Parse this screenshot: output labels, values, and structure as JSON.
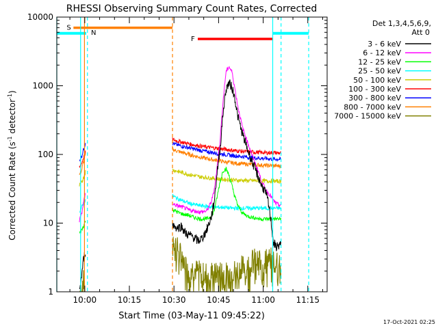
{
  "chart_data": {
    "type": "line",
    "title": "RHESSI Observing Summary Count Rates, Corrected",
    "xlabel": "Start Time (03-May-11 09:45:22)",
    "ylabel_main": "Corrected Count Rate (s",
    "ylabel_sup1": "-1",
    "ylabel_mid": " detector",
    "ylabel_sup2": "-1",
    "ylabel_end": ")",
    "yscale": "log",
    "ylim": [
      1,
      10000
    ],
    "xlim_minutes": [
      -9.4,
      81.5
    ],
    "yticks": [
      1,
      10,
      100,
      1000,
      10000
    ],
    "ytick_labels": [
      "1",
      "10",
      "100",
      "1000",
      "10000"
    ],
    "xticks": [
      {
        "label": "10:00",
        "min": 0
      },
      {
        "label": "10:15",
        "min": 15
      },
      {
        "label": "10:30",
        "min": 30
      },
      {
        "label": "10:45",
        "min": 45
      },
      {
        "label": "11:00",
        "min": 60
      },
      {
        "label": "11:15",
        "min": 75
      }
    ],
    "legend": {
      "header_line1": "Det 1,3,4,5,6,9,",
      "header_line2": "Att 0",
      "placement": "top-right-outside"
    },
    "series": [
      {
        "name": "3 - 6 keV",
        "color": "#000000",
        "segments": [
          [
            [
              -1.8,
              1.0
            ],
            [
              -1.0,
              1.8
            ],
            [
              -0.5,
              2.8
            ],
            [
              0,
              3.5
            ],
            [
              0.3,
              4.2
            ]
          ],
          [
            [
              29.5,
              9.5
            ],
            [
              31,
              8.5
            ],
            [
              32.5,
              9.0
            ],
            [
              34,
              7.0
            ],
            [
              36,
              6.5
            ],
            [
              38,
              5.5
            ],
            [
              39.5,
              6.0
            ],
            [
              41,
              8.0
            ],
            [
              42.5,
              12
            ],
            [
              43.5,
              20
            ],
            [
              44.5,
              55
            ],
            [
              45.5,
              120
            ],
            [
              46.5,
              400
            ],
            [
              47.5,
              900
            ],
            [
              48.5,
              1100
            ],
            [
              49.5,
              950
            ],
            [
              50.5,
              650
            ],
            [
              51.5,
              350
            ],
            [
              53,
              200
            ],
            [
              55,
              110
            ],
            [
              57,
              65
            ],
            [
              58.5,
              45
            ],
            [
              59.5,
              35
            ],
            [
              60.5,
              30
            ],
            [
              61.5,
              22
            ],
            [
              62.5,
              12
            ],
            [
              63.5,
              5.0
            ],
            [
              64.5,
              4.5
            ],
            [
              66,
              5.0
            ]
          ]
        ]
      },
      {
        "name": "6 - 12 keV",
        "color": "#ff00ff",
        "segments": [
          [
            [
              -1.8,
              11
            ],
            [
              -1.0,
              14
            ],
            [
              -0.5,
              19
            ],
            [
              0,
              24
            ],
            [
              0.3,
              28
            ]
          ],
          [
            [
              29.5,
              19
            ],
            [
              31,
              18
            ],
            [
              33,
              17
            ],
            [
              35,
              15.5
            ],
            [
              37,
              15
            ],
            [
              39,
              14.5
            ],
            [
              41,
              15
            ],
            [
              42.5,
              20
            ],
            [
              43.5,
              30
            ],
            [
              44.5,
              65
            ],
            [
              45.5,
              160
            ],
            [
              46.5,
              600
            ],
            [
              47.5,
              1600
            ],
            [
              48.5,
              1900
            ],
            [
              49.5,
              1600
            ],
            [
              50.5,
              900
            ],
            [
              51.5,
              500
            ],
            [
              53,
              250
            ],
            [
              55,
              140
            ],
            [
              57,
              80
            ],
            [
              58.5,
              55
            ],
            [
              59.5,
              40
            ],
            [
              60.5,
              33
            ],
            [
              61.5,
              28
            ],
            [
              62.5,
              25
            ],
            [
              63.5,
              21
            ],
            [
              64.5,
              19
            ],
            [
              66,
              18
            ]
          ]
        ]
      },
      {
        "name": "12 - 25 keV",
        "color": "#00ff00",
        "segments": [
          [
            [
              -1.8,
              7
            ],
            [
              -1.0,
              8
            ],
            [
              -0.5,
              9
            ],
            [
              0,
              10
            ],
            [
              0.3,
              11
            ]
          ],
          [
            [
              29.5,
              16
            ],
            [
              31,
              14.5
            ],
            [
              33,
              13.5
            ],
            [
              35,
              13
            ],
            [
              37,
              12
            ],
            [
              39,
              11.5
            ],
            [
              41,
              11.5
            ],
            [
              42.5,
              12.5
            ],
            [
              43.5,
              15
            ],
            [
              44.5,
              24
            ],
            [
              45.5,
              40
            ],
            [
              46.5,
              58
            ],
            [
              47.5,
              62
            ],
            [
              48.5,
              50
            ],
            [
              49.5,
              35
            ],
            [
              50.5,
              24
            ],
            [
              51.5,
              18
            ],
            [
              53,
              14
            ],
            [
              55,
              12.5
            ],
            [
              57,
              12
            ],
            [
              59,
              11.5
            ],
            [
              61,
              11.5
            ],
            [
              63,
              11.5
            ],
            [
              66,
              11.5
            ]
          ]
        ]
      },
      {
        "name": "25 - 50 keV",
        "color": "#00ffff",
        "segments": [
          [
            [
              -1.8,
              15
            ],
            [
              -1.0,
              17
            ],
            [
              -0.5,
              19
            ],
            [
              0,
              21
            ],
            [
              0.3,
              23
            ]
          ],
          [
            [
              29.5,
              25
            ],
            [
              31,
              23
            ],
            [
              33,
              21
            ],
            [
              35,
              19.5
            ],
            [
              37,
              18.5
            ],
            [
              39,
              18
            ],
            [
              41,
              17.5
            ],
            [
              43,
              17
            ],
            [
              45,
              17
            ],
            [
              47,
              17
            ],
            [
              49,
              16.5
            ],
            [
              51,
              16.5
            ],
            [
              53,
              16.5
            ],
            [
              55,
              16.5
            ],
            [
              57,
              16.5
            ],
            [
              59,
              16.5
            ],
            [
              61,
              16.5
            ],
            [
              63,
              16.5
            ],
            [
              66,
              16.5
            ]
          ]
        ]
      },
      {
        "name": "50 - 100 keV",
        "color": "#cccc00",
        "segments": [
          [
            [
              -1.8,
              35
            ],
            [
              -1.0,
              40
            ],
            [
              -0.5,
              45
            ],
            [
              0,
              52
            ],
            [
              0.3,
              58
            ]
          ],
          [
            [
              29.5,
              60
            ],
            [
              31,
              57
            ],
            [
              33,
              54
            ],
            [
              35,
              51
            ],
            [
              37,
              49
            ],
            [
              39,
              47
            ],
            [
              41,
              46
            ],
            [
              43,
              45
            ],
            [
              45,
              44
            ],
            [
              47,
              43
            ],
            [
              49,
              43
            ],
            [
              51,
              42
            ],
            [
              53,
              42
            ],
            [
              55,
              41.5
            ],
            [
              57,
              41.5
            ],
            [
              59,
              41
            ],
            [
              61,
              41
            ],
            [
              63,
              41
            ],
            [
              66,
              40.5
            ]
          ]
        ]
      },
      {
        "name": "100 - 300 keV",
        "color": "#ff0000",
        "segments": [
          [
            [
              -1.8,
              65
            ],
            [
              -1.0,
              75
            ],
            [
              -0.5,
              88
            ],
            [
              0,
              100
            ],
            [
              0.3,
              112
            ]
          ],
          [
            [
              29.5,
              165
            ],
            [
              31,
              158
            ],
            [
              33,
              150
            ],
            [
              35,
              143
            ],
            [
              37,
              137
            ],
            [
              39,
              132
            ],
            [
              41,
              128
            ],
            [
              43,
              125
            ],
            [
              45,
              122
            ],
            [
              47,
              119
            ],
            [
              49,
              116
            ],
            [
              51,
              113
            ],
            [
              53,
              111
            ],
            [
              55,
              109
            ],
            [
              57,
              108
            ],
            [
              59,
              107
            ],
            [
              61,
              106
            ],
            [
              63,
              106
            ],
            [
              66,
              105
            ]
          ]
        ]
      },
      {
        "name": "300 - 800 keV",
        "color": "#0000ff",
        "segments": [
          [
            [
              -1.8,
              80
            ],
            [
              -1.0,
              95
            ],
            [
              -0.5,
              115
            ],
            [
              0,
              135
            ],
            [
              0.3,
              155
            ]
          ],
          [
            [
              29.5,
              145
            ],
            [
              31,
              138
            ],
            [
              33,
              131
            ],
            [
              35,
              125
            ],
            [
              37,
              119
            ],
            [
              39,
              114
            ],
            [
              41,
              110
            ],
            [
              43,
              106
            ],
            [
              45,
              103
            ],
            [
              47,
              100
            ],
            [
              49,
              97
            ],
            [
              51,
              95
            ],
            [
              53,
              93
            ],
            [
              55,
              91
            ],
            [
              57,
              89
            ],
            [
              59,
              88
            ],
            [
              61,
              87
            ],
            [
              63,
              86
            ],
            [
              66,
              85
            ]
          ]
        ]
      },
      {
        "name": "800 - 7000 keV",
        "color": "#ff8000",
        "segments": [
          [
            [
              -1.8,
              50
            ],
            [
              -1.0,
              60
            ],
            [
              -0.5,
              75
            ],
            [
              0,
              90
            ],
            [
              0.3,
              105
            ]
          ],
          [
            [
              29.5,
              118
            ],
            [
              31,
              112
            ],
            [
              33,
              106
            ],
            [
              35,
              100
            ],
            [
              37,
              95
            ],
            [
              39,
              91
            ],
            [
              41,
              87
            ],
            [
              43,
              84
            ],
            [
              45,
              81
            ],
            [
              47,
              78
            ],
            [
              49,
              76
            ],
            [
              51,
              74
            ],
            [
              53,
              73
            ],
            [
              55,
              72
            ],
            [
              57,
              71
            ],
            [
              59,
              70
            ],
            [
              61,
              69
            ],
            [
              63,
              68.5
            ],
            [
              66,
              68
            ]
          ]
        ]
      },
      {
        "name": "7000 - 15000 keV",
        "color": "#808000",
        "segments": [
          [
            [
              -1.8,
              1.0
            ],
            [
              -1.0,
              1.3
            ],
            [
              0,
              1.6
            ]
          ],
          [
            [
              29.5,
              6.5
            ],
            [
              30.5,
              5.0
            ],
            [
              31.5,
              4.0
            ],
            [
              33,
              3.2
            ],
            [
              34.5,
              2.5
            ],
            [
              36,
              2.2
            ],
            [
              38,
              2.0
            ],
            [
              40,
              1.8
            ],
            [
              42,
              2.0
            ],
            [
              44,
              1.8
            ],
            [
              46,
              2.0
            ],
            [
              48,
              1.8
            ],
            [
              50,
              2.0
            ],
            [
              52,
              2.2
            ],
            [
              54,
              2.5
            ],
            [
              56,
              2.8
            ],
            [
              58,
              3.0
            ],
            [
              60,
              3.0
            ],
            [
              62,
              3.0
            ],
            [
              64,
              3.0
            ],
            [
              66,
              3.0
            ]
          ]
        ]
      }
    ],
    "flags": [
      {
        "label": "S",
        "color": "#ff8000",
        "start": -3.8,
        "end": 29.5,
        "y": 7000
      },
      {
        "label": "F",
        "color": "#ff0000",
        "start": 38.0,
        "end": 63.2,
        "y": 4800
      }
    ],
    "night_bars": [
      {
        "color": "#00ffff",
        "start": -9.4,
        "end": 0.5,
        "y": 5800,
        "label": "N"
      },
      {
        "color": "#00ffff",
        "start": 63.2,
        "end": 75.3,
        "y": 5800,
        "label": ""
      }
    ],
    "vlines": [
      {
        "t": -1.4,
        "color": "#00ffff",
        "style": "solid"
      },
      {
        "t": 0.9,
        "color": "#00ffff",
        "style": "dashed"
      },
      {
        "t": -0.1,
        "color": "#ff8000",
        "style": "solid"
      },
      {
        "t": 29.5,
        "color": "#ff8000",
        "style": "dashed"
      },
      {
        "t": 63.2,
        "color": "#00ffff",
        "style": "solid"
      },
      {
        "t": 66.0,
        "color": "#00ffff",
        "style": "dashed"
      },
      {
        "t": 75.3,
        "color": "#00ffff",
        "style": "dashed"
      },
      {
        "t": -9.4,
        "color": "#00ffff",
        "style": "solid"
      }
    ],
    "timestamp": "17-Oct-2021 02:25"
  }
}
